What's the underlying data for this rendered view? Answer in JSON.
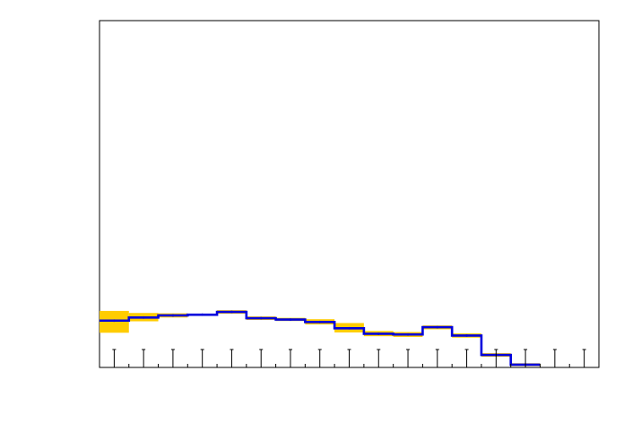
{
  "chart_data": {
    "type": "line",
    "title": "",
    "xlabel": "",
    "ylabel": "",
    "x_bins": 17,
    "xlim": [
      0,
      17
    ],
    "ylim": [
      0,
      1
    ],
    "tick_labels_printed": false,
    "grid": false,
    "legend": "none",
    "colors": {
      "band": "#ffcc00",
      "line": "#0000dd",
      "frame": "#000000"
    },
    "series": [
      {
        "values": [
          0.135,
          0.144,
          0.15,
          0.152,
          0.16,
          0.142,
          0.138,
          0.131,
          0.113,
          0.097,
          0.095,
          0.116,
          0.092,
          0.036,
          0.008
        ],
        "band_low": [
          0.1,
          0.133,
          0.144,
          0.149,
          0.155,
          0.137,
          0.134,
          0.124,
          0.101,
          0.09,
          0.088,
          0.11,
          0.086,
          0.031,
          0.004
        ],
        "band_high": [
          0.163,
          0.157,
          0.156,
          0.155,
          0.165,
          0.147,
          0.143,
          0.139,
          0.128,
          0.105,
          0.102,
          0.121,
          0.098,
          0.041,
          0.012
        ]
      }
    ]
  }
}
